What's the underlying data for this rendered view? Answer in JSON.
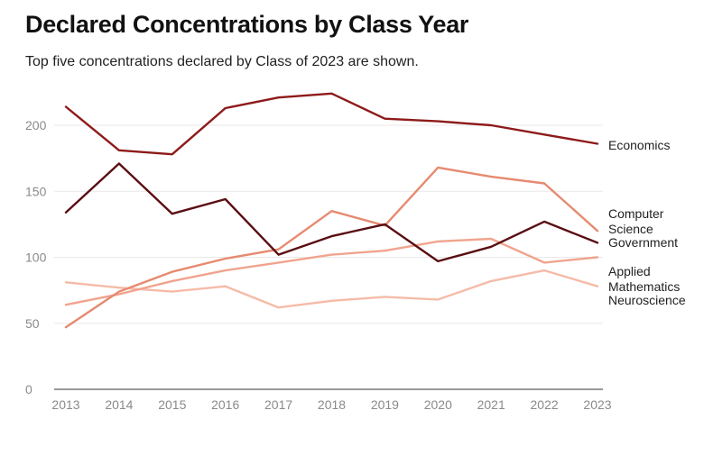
{
  "chart_data": {
    "type": "line",
    "title": "Declared Concentrations by Class Year",
    "subtitle": "Top five concentrations declared by Class of 2023 are shown.",
    "xlabel": "",
    "ylabel": "",
    "ylim": [
      0,
      225
    ],
    "yticks": [
      "0",
      "50",
      "100",
      "150",
      "200"
    ],
    "ytick_values": [
      0,
      50,
      100,
      150,
      200
    ],
    "grid": true,
    "legend": "direct labels at right end of lines",
    "x": [
      "2013",
      "2014",
      "2015",
      "2016",
      "2017",
      "2018",
      "2019",
      "2020",
      "2021",
      "2022",
      "2023"
    ],
    "series": [
      {
        "name": "Economics",
        "label_lines": [
          "Economics"
        ],
        "color": "#8e1a1a",
        "values": [
          214,
          181,
          178,
          213,
          221,
          224,
          205,
          203,
          200,
          193,
          186
        ]
      },
      {
        "name": "Computer Science",
        "label_lines": [
          "Computer",
          "Science"
        ],
        "color": "#e68a70",
        "values": [
          47,
          74,
          89,
          99,
          106,
          135,
          124,
          168,
          161,
          156,
          120
        ]
      },
      {
        "name": "Government",
        "label_lines": [
          "Government"
        ],
        "color": "#5a0e12",
        "values": [
          134,
          171,
          133,
          144,
          102,
          116,
          125,
          97,
          108,
          127,
          111
        ]
      },
      {
        "name": "Applied Mathematics",
        "label_lines": [
          "Applied",
          "Mathematics"
        ],
        "color": "#f0a48e",
        "values": [
          64,
          72,
          82,
          90,
          96,
          102,
          105,
          112,
          114,
          96,
          100
        ]
      },
      {
        "name": "Neuroscience",
        "label_lines": [
          "Neuroscience"
        ],
        "color": "#f5bba8",
        "values": [
          81,
          77,
          74,
          78,
          62,
          67,
          70,
          68,
          82,
          90,
          78
        ]
      }
    ]
  }
}
